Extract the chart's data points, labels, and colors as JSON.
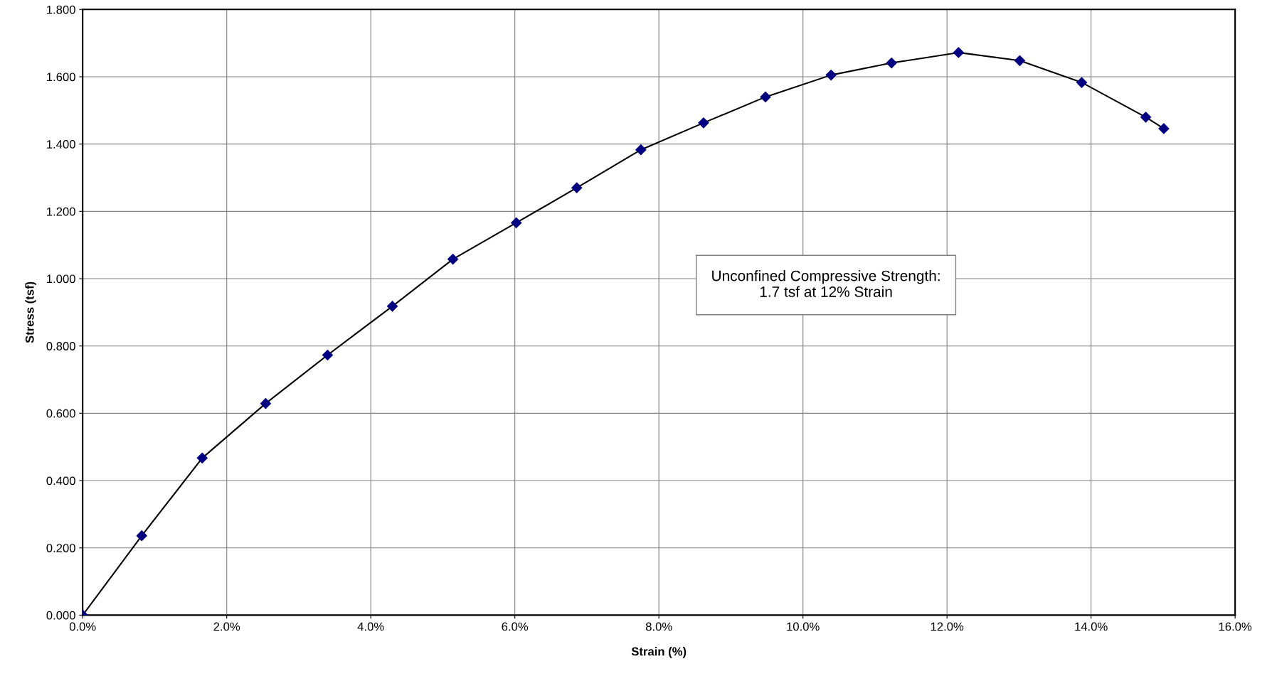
{
  "chart_data": {
    "type": "line",
    "xlabel": "Strain (%)",
    "ylabel": "Stress (tsf)",
    "annotations": [
      "Unconfined Compressive Strength:\n1.7 tsf at 12% Strain"
    ],
    "series": [
      {
        "color": "#000080",
        "x": [
          0,
          0.82,
          1.66,
          2.54,
          3.4,
          4.3,
          5.14,
          6.02,
          6.86,
          7.75,
          8.62,
          9.48,
          10.39,
          11.23,
          12.16,
          13.01,
          13.87,
          14.76,
          15.01
        ],
        "values": [
          0,
          0.236,
          0.467,
          0.629,
          0.773,
          0.918,
          1.058,
          1.166,
          1.27,
          1.383,
          1.463,
          1.54,
          1.605,
          1.641,
          1.672,
          1.648,
          1.583,
          1.48,
          1.446
        ]
      }
    ],
    "xlim": [
      0,
      16
    ],
    "ylim": [
      0,
      1.8
    ],
    "xticks": [
      {
        "value": 0,
        "label": "0.0%"
      },
      {
        "value": 2,
        "label": "2.0%"
      },
      {
        "value": 4,
        "label": "4.0%"
      },
      {
        "value": 6,
        "label": "6.0%"
      },
      {
        "value": 8,
        "label": "8.0%"
      },
      {
        "value": 10,
        "label": "10.0%"
      },
      {
        "value": 12,
        "label": "12.0%"
      },
      {
        "value": 14,
        "label": "14.0%"
      },
      {
        "value": 16,
        "label": "16.0%"
      }
    ],
    "yticks": [
      {
        "value": 0,
        "label": "0.000"
      },
      {
        "value": 0.2,
        "label": "0.200"
      },
      {
        "value": 0.4,
        "label": "0.400"
      },
      {
        "value": 0.6,
        "label": "0.600"
      },
      {
        "value": 0.8,
        "label": "0.800"
      },
      {
        "value": 1.0,
        "label": "1.000"
      },
      {
        "value": 1.2,
        "label": "1.200"
      },
      {
        "value": 1.4,
        "label": "1.400"
      },
      {
        "value": 1.6,
        "label": "1.600"
      },
      {
        "value": 1.8,
        "label": "1.800"
      }
    ],
    "grid": true,
    "marker": "diamond",
    "line_style": "solid"
  }
}
